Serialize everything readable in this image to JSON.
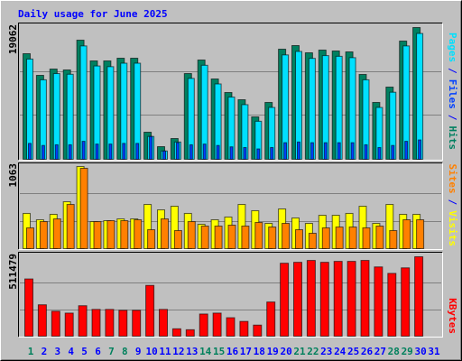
{
  "chart_data": [
    {
      "type": "bar",
      "title": "Daily usage for June 2025",
      "legend_separator": "/",
      "ylim": [
        0,
        19062
      ],
      "yticks": [
        19062
      ],
      "series": [
        {
          "name": "Pages",
          "color": "#00e0ff",
          "values": [
            14500,
            11500,
            12400,
            12300,
            16400,
            13500,
            13400,
            13900,
            13900,
            3300,
            1200,
            2500,
            11700,
            13600,
            10900,
            9000,
            7900,
            5500,
            7500,
            15100,
            15600,
            14600,
            15000,
            14900,
            14700,
            11500,
            7500,
            9700,
            16400,
            18200,
            null
          ]
        },
        {
          "name": "Files",
          "color": "#0040ff",
          "values": [
            2300,
            2000,
            2100,
            2100,
            2600,
            2200,
            2200,
            2300,
            2300,
            3300,
            1200,
            2400,
            2100,
            2200,
            2000,
            1800,
            1700,
            1500,
            1700,
            2400,
            2500,
            2400,
            2400,
            2400,
            2400,
            2100,
            1700,
            2000,
            2600,
            2800,
            null
          ]
        },
        {
          "name": "Hits",
          "color": "#008060",
          "values": [
            15276,
            12142,
            13056,
            12926,
            17234,
            14231,
            14231,
            14623,
            14623,
            3917,
            1828,
            3003,
            12403,
            14362,
            11620,
            9662,
            8617,
            6136,
            8225,
            15928,
            16451,
            15406,
            15798,
            15667,
            15537,
            12273,
            8225,
            10445,
            17103,
            19062,
            null
          ]
        }
      ]
    },
    {
      "type": "bar",
      "ylim": [
        0,
        1063
      ],
      "yticks": [
        1063
      ],
      "series": [
        {
          "name": "Sites",
          "color": "#ff8000",
          "values": [
            269,
            350,
            385,
            572,
            1040,
            350,
            362,
            362,
            374,
            245,
            385,
            234,
            350,
            292,
            292,
            304,
            292,
            339,
            280,
            327,
            245,
            199,
            269,
            280,
            280,
            269,
            292,
            234,
            374,
            374,
            null
          ]
        },
        {
          "name": "Visits",
          "color": "#ffff00",
          "values": [
            456,
            374,
            444,
            607,
            1063,
            350,
            362,
            385,
            385,
            572,
            502,
            549,
            456,
            315,
            374,
            409,
            572,
            491,
            327,
            514,
            397,
            327,
            432,
            432,
            456,
            549,
            327,
            572,
            444,
            444,
            null
          ]
        }
      ]
    },
    {
      "type": "bar",
      "ylim": [
        0,
        511479
      ],
      "yticks": [
        511479
      ],
      "categories": [
        "1",
        "2",
        "3",
        "4",
        "5",
        "6",
        "7",
        "8",
        "9",
        "10",
        "11",
        "12",
        "13",
        "14",
        "15",
        "16",
        "17",
        "18",
        "19",
        "20",
        "21",
        "22",
        "23",
        "24",
        "25",
        "26",
        "27",
        "28",
        "29",
        "30",
        "31"
      ],
      "category_colors": [
        "#00805c",
        "#0000ff",
        "#0000ff",
        "#0000ff",
        "#0000ff",
        "#0000ff",
        "#00805c",
        "#00805c",
        "#0000ff",
        "#0000ff",
        "#0000ff",
        "#0000ff",
        "#0000ff",
        "#00805c",
        "#00805c",
        "#0000ff",
        "#0000ff",
        "#0000ff",
        "#0000ff",
        "#0000ff",
        "#00805c",
        "#00805c",
        "#0000ff",
        "#0000ff",
        "#0000ff",
        "#0000ff",
        "#0000ff",
        "#00805c",
        "#00805c",
        "#0000ff",
        "#0000ff"
      ],
      "series": [
        {
          "name": "KBytes",
          "color": "#ff0000",
          "values": [
            368740,
            202212,
            160580,
            148685,
            196265,
            172475,
            172475,
            166528,
            166528,
            327108,
            172475,
            47580,
            41632,
            142738,
            148685,
            118948,
            95158,
            71369,
            220054,
            469848,
            475795,
            487690,
            475795,
            481743,
            481743,
            487690,
            446058,
            404422,
            440101,
            511479,
            null
          ]
        }
      ]
    }
  ]
}
